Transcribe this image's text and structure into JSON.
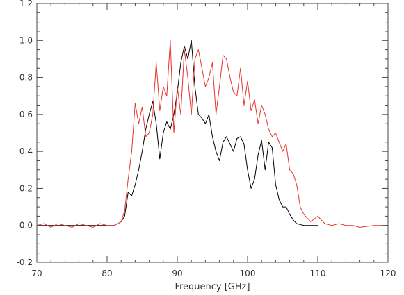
{
  "chart_data": {
    "type": "line",
    "title": "",
    "xlabel": "Frequency [GHz]",
    "ylabel": "",
    "xlim": [
      70,
      120
    ],
    "ylim": [
      -0.2,
      1.2
    ],
    "xticks": [
      70,
      80,
      90,
      100,
      110,
      120
    ],
    "yticks": [
      -0.2,
      0.0,
      0.2,
      0.4,
      0.6,
      0.8,
      1.0,
      1.2
    ],
    "xtick_labels": [
      "70",
      "80",
      "90",
      "100",
      "110",
      "120"
    ],
    "ytick_labels": [
      "-0.2",
      "0.0",
      "0.2",
      "0.4",
      "0.6",
      "0.8",
      "1.0",
      "1.2"
    ],
    "grid": false,
    "legend": "none",
    "series": [
      {
        "color": "#000000",
        "x": [
          70,
          72,
          74,
          76,
          78,
          80,
          81,
          82,
          82.5,
          83,
          83.5,
          84,
          84.5,
          85,
          85.5,
          86,
          86.5,
          87,
          87.5,
          88,
          88.5,
          89,
          89.5,
          90,
          90.5,
          91,
          91.5,
          92,
          92.5,
          93,
          93.5,
          94,
          94.5,
          95,
          95.5,
          96,
          96.5,
          97,
          97.5,
          98,
          98.5,
          99,
          99.5,
          100,
          100.5,
          101,
          101.5,
          102,
          102.5,
          103,
          103.5,
          104,
          104.5,
          105,
          105.5,
          106,
          106.5,
          107,
          108,
          109,
          110
        ],
        "y": [
          0.0,
          0.0,
          0.0,
          0.0,
          0.0,
          0.0,
          0.0,
          0.02,
          0.05,
          0.18,
          0.16,
          0.22,
          0.3,
          0.4,
          0.52,
          0.6,
          0.67,
          0.55,
          0.36,
          0.5,
          0.56,
          0.52,
          0.6,
          0.72,
          0.88,
          0.97,
          0.9,
          1.0,
          0.75,
          0.6,
          0.58,
          0.55,
          0.6,
          0.48,
          0.4,
          0.35,
          0.45,
          0.48,
          0.44,
          0.4,
          0.47,
          0.48,
          0.44,
          0.3,
          0.2,
          0.25,
          0.38,
          0.46,
          0.3,
          0.45,
          0.42,
          0.22,
          0.14,
          0.1,
          0.1,
          0.06,
          0.03,
          0.01,
          0.0,
          0.0,
          0.0
        ]
      },
      {
        "color": "#e8332b",
        "x": [
          70,
          71,
          72,
          73,
          74,
          75,
          76,
          77,
          78,
          79,
          80,
          81,
          82,
          82.5,
          83,
          83.5,
          84,
          84.5,
          85,
          85.5,
          86,
          86.5,
          87,
          87.5,
          88,
          88.5,
          89,
          89.5,
          90,
          90.5,
          91,
          91.5,
          92,
          92.5,
          93,
          93.5,
          94,
          94.5,
          95,
          95.5,
          96,
          96.5,
          97,
          97.5,
          98,
          98.5,
          99,
          99.5,
          100,
          100.5,
          101,
          101.5,
          102,
          102.5,
          103,
          103.5,
          104,
          104.5,
          105,
          105.5,
          106,
          106.5,
          107,
          107.5,
          108,
          108.5,
          109,
          110,
          111,
          112,
          113,
          114,
          115,
          116,
          118,
          120
        ],
        "y": [
          0.0,
          0.01,
          -0.01,
          0.01,
          0.0,
          -0.01,
          0.01,
          0.0,
          -0.01,
          0.01,
          0.0,
          0.0,
          0.02,
          0.08,
          0.25,
          0.4,
          0.66,
          0.55,
          0.64,
          0.48,
          0.5,
          0.6,
          0.88,
          0.62,
          0.75,
          0.7,
          1.0,
          0.5,
          0.75,
          0.6,
          0.95,
          0.8,
          0.6,
          0.9,
          0.95,
          0.85,
          0.75,
          0.8,
          0.88,
          0.6,
          0.75,
          0.92,
          0.9,
          0.8,
          0.72,
          0.7,
          0.85,
          0.65,
          0.78,
          0.62,
          0.68,
          0.55,
          0.65,
          0.6,
          0.52,
          0.48,
          0.5,
          0.45,
          0.4,
          0.44,
          0.3,
          0.28,
          0.22,
          0.1,
          0.06,
          0.04,
          0.02,
          0.05,
          0.01,
          0.0,
          0.01,
          0.0,
          0.0,
          -0.01,
          0.0,
          0.0
        ]
      }
    ]
  }
}
